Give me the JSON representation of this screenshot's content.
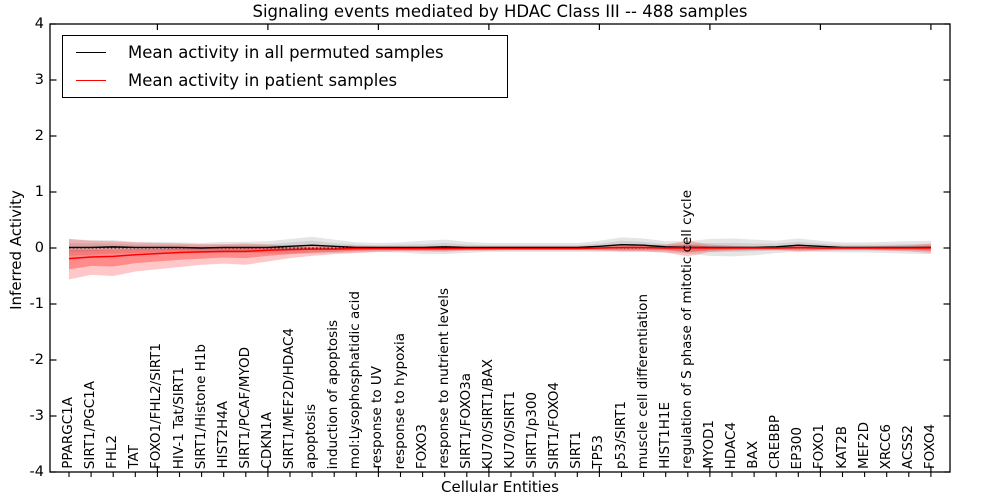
{
  "chart_data": {
    "type": "line",
    "title": "Signaling events mediated by HDAC Class III -- 488 samples",
    "xlabel": "Cellular Entities",
    "ylabel": "Inferred Activity",
    "ylim": [
      -4,
      4
    ],
    "yticks": [
      -4,
      -3,
      -2,
      -1,
      0,
      1,
      2,
      3,
      4
    ],
    "x_major_tick_every": 5,
    "grid": false,
    "legend_position": "upper left",
    "zero_line_style": "dotted",
    "categories": [
      "PPARGC1A",
      "SIRT1/PGC1A",
      "FHL2",
      "TAT",
      "FOXO1/FHL2/SIRT1",
      "HIV-1 Tat/SIRT1",
      "SIRT1/Histone H1b",
      "HIST2H4A",
      "SIRT1/PCAF/MYOD",
      "CDKN1A",
      "SIRT1/MEF2D/HDAC4",
      "apoptosis",
      "induction of apoptosis",
      "mol:Lysophosphatidic acid",
      "response to UV",
      "response to hypoxia",
      "FOXO3",
      "response to nutrient levels",
      "SIRT1/FOXO3a",
      "KU70/SIRT1/BAX",
      "KU70/SIRT1",
      "SIRT1/p300",
      "SIRT1/FOXO4",
      "SIRT1",
      "TP53",
      "p53/SIRT1",
      "muscle cell differentiation",
      "HIST1H1E",
      "regulation of S phase of mitotic cell cycle",
      "MYOD1",
      "HDAC4",
      "BAX",
      "CREBBP",
      "EP300",
      "FOXO1",
      "KAT2B",
      "MEF2D",
      "XRCC6",
      "ACSS2",
      "FOXO4"
    ],
    "series": [
      {
        "name": "Mean activity in all permuted samples",
        "color": "#000000",
        "band_color": "#999999",
        "values": [
          0.01,
          0.01,
          0.02,
          0.01,
          0.01,
          0.01,
          0.0,
          0.01,
          0.01,
          0.01,
          0.03,
          0.05,
          0.03,
          0.01,
          0.01,
          0.01,
          0.01,
          0.02,
          0.01,
          0.01,
          0.01,
          0.01,
          0.01,
          0.01,
          0.03,
          0.06,
          0.05,
          0.02,
          0.01,
          0.01,
          0.01,
          0.01,
          0.02,
          0.05,
          0.03,
          0.01,
          0.01,
          0.01,
          0.01,
          0.01
        ],
        "bands": [
          {
            "level": "outer",
            "opacity": 0.25,
            "upper": [
              0.16,
              0.14,
              0.14,
              0.11,
              0.11,
              0.1,
              0.09,
              0.11,
              0.11,
              0.12,
              0.16,
              0.2,
              0.15,
              0.1,
              0.09,
              0.1,
              0.13,
              0.15,
              0.11,
              0.09,
              0.09,
              0.09,
              0.09,
              0.09,
              0.13,
              0.19,
              0.17,
              0.12,
              0.12,
              0.16,
              0.17,
              0.15,
              0.13,
              0.17,
              0.13,
              0.1,
              0.1,
              0.11,
              0.12,
              0.13
            ],
            "lower": [
              -0.14,
              -0.12,
              -0.1,
              -0.09,
              -0.09,
              -0.08,
              -0.09,
              -0.09,
              -0.09,
              -0.1,
              -0.1,
              -0.1,
              -0.09,
              -0.08,
              -0.07,
              -0.08,
              -0.11,
              -0.11,
              -0.09,
              -0.07,
              -0.07,
              -0.07,
              -0.07,
              -0.07,
              -0.07,
              -0.07,
              -0.07,
              -0.08,
              -0.1,
              -0.14,
              -0.15,
              -0.13,
              -0.09,
              -0.07,
              -0.07,
              -0.08,
              -0.08,
              -0.09,
              -0.1,
              -0.11
            ]
          },
          {
            "level": "inner",
            "opacity": 0.25,
            "upper": [
              0.09,
              0.08,
              0.08,
              0.06,
              0.06,
              0.06,
              0.05,
              0.06,
              0.06,
              0.07,
              0.1,
              0.13,
              0.09,
              0.06,
              0.05,
              0.06,
              0.07,
              0.09,
              0.06,
              0.05,
              0.05,
              0.05,
              0.05,
              0.05,
              0.08,
              0.13,
              0.11,
              0.07,
              0.07,
              0.09,
              0.09,
              0.08,
              0.08,
              0.11,
              0.08,
              0.06,
              0.06,
              0.06,
              0.07,
              0.07
            ],
            "lower": [
              -0.07,
              -0.06,
              -0.04,
              -0.04,
              -0.04,
              -0.04,
              -0.05,
              -0.04,
              -0.04,
              -0.05,
              -0.04,
              -0.03,
              -0.03,
              -0.04,
              -0.03,
              -0.04,
              -0.05,
              -0.05,
              -0.04,
              -0.03,
              -0.03,
              -0.03,
              -0.03,
              -0.03,
              -0.02,
              0.0,
              -0.01,
              -0.03,
              -0.05,
              -0.07,
              -0.07,
              -0.06,
              -0.04,
              -0.01,
              -0.02,
              -0.04,
              -0.04,
              -0.04,
              -0.05,
              -0.05
            ]
          }
        ]
      },
      {
        "name": "Mean activity in patient samples",
        "color": "#ff0000",
        "band_color": "#ff0000",
        "values": [
          -0.19,
          -0.16,
          -0.15,
          -0.12,
          -0.1,
          -0.08,
          -0.07,
          -0.06,
          -0.06,
          -0.04,
          -0.03,
          -0.02,
          -0.02,
          -0.01,
          -0.01,
          -0.01,
          -0.01,
          -0.01,
          -0.01,
          -0.01,
          -0.01,
          -0.01,
          -0.01,
          -0.01,
          0.0,
          0.01,
          0.01,
          0.0,
          0.0,
          0.0,
          0.0,
          0.0,
          0.0,
          0.01,
          0.0,
          0.0,
          0.0,
          0.0,
          0.0,
          0.0
        ],
        "bands": [
          {
            "level": "outer",
            "opacity": 0.22,
            "upper": [
              0.16,
              0.13,
              0.12,
              0.1,
              0.09,
              0.08,
              0.07,
              0.07,
              0.08,
              0.06,
              0.05,
              0.05,
              0.04,
              0.04,
              0.03,
              0.03,
              0.03,
              0.04,
              0.03,
              0.03,
              0.03,
              0.03,
              0.03,
              0.03,
              0.04,
              0.05,
              0.05,
              0.06,
              0.13,
              0.06,
              0.04,
              0.03,
              0.03,
              0.05,
              0.04,
              0.03,
              0.03,
              0.04,
              0.05,
              0.08
            ],
            "lower": [
              -0.56,
              -0.48,
              -0.5,
              -0.42,
              -0.38,
              -0.34,
              -0.3,
              -0.28,
              -0.3,
              -0.24,
              -0.18,
              -0.14,
              -0.11,
              -0.09,
              -0.07,
              -0.06,
              -0.06,
              -0.07,
              -0.05,
              -0.05,
              -0.04,
              -0.04,
              -0.04,
              -0.04,
              -0.05,
              -0.06,
              -0.06,
              -0.08,
              -0.15,
              -0.07,
              -0.05,
              -0.04,
              -0.04,
              -0.06,
              -0.05,
              -0.04,
              -0.04,
              -0.05,
              -0.06,
              -0.09
            ]
          },
          {
            "level": "inner",
            "opacity": 0.3,
            "upper": [
              -0.03,
              -0.03,
              -0.03,
              -0.02,
              -0.02,
              -0.01,
              -0.01,
              0.0,
              0.0,
              0.01,
              0.01,
              0.01,
              0.01,
              0.01,
              0.01,
              0.01,
              0.01,
              0.01,
              0.01,
              0.01,
              0.01,
              0.01,
              0.01,
              0.01,
              0.02,
              0.03,
              0.03,
              0.03,
              0.06,
              0.03,
              0.02,
              0.01,
              0.01,
              0.03,
              0.02,
              0.01,
              0.01,
              0.02,
              0.02,
              0.04
            ],
            "lower": [
              -0.38,
              -0.32,
              -0.33,
              -0.27,
              -0.24,
              -0.21,
              -0.19,
              -0.17,
              -0.18,
              -0.14,
              -0.11,
              -0.08,
              -0.07,
              -0.05,
              -0.04,
              -0.04,
              -0.04,
              -0.04,
              -0.03,
              -0.03,
              -0.03,
              -0.03,
              -0.03,
              -0.03,
              -0.03,
              -0.04,
              -0.04,
              -0.04,
              -0.08,
              -0.04,
              -0.03,
              -0.02,
              -0.02,
              -0.04,
              -0.03,
              -0.02,
              -0.02,
              -0.03,
              -0.03,
              -0.05
            ]
          }
        ]
      }
    ]
  }
}
